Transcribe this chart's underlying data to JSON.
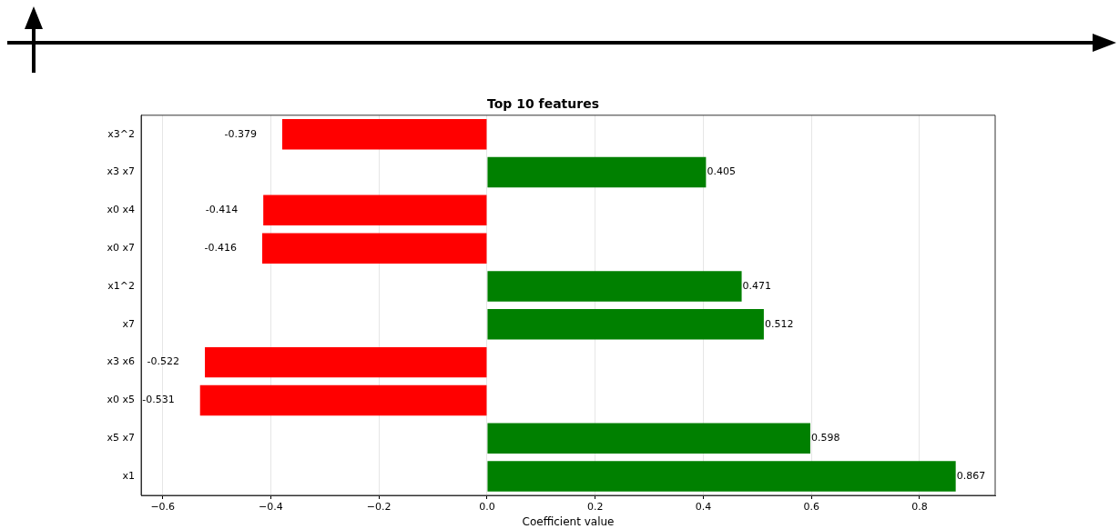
{
  "chart_data": {
    "type": "bar",
    "orientation": "horizontal",
    "title": "Top 10 features",
    "xlabel": "Coefficient value",
    "categories": [
      "x3^2",
      "x3 x7",
      "x0 x4",
      "x0 x7",
      "x1^2",
      "x7",
      "x3 x6",
      "x0 x5",
      "x5 x7",
      "x1"
    ],
    "values": [
      -0.379,
      0.405,
      -0.414,
      -0.416,
      0.471,
      0.512,
      -0.522,
      -0.531,
      0.598,
      0.867
    ],
    "colors": [
      "#ff0000",
      "#008000",
      "#ff0000",
      "#ff0000",
      "#008000",
      "#008000",
      "#ff0000",
      "#ff0000",
      "#008000",
      "#008000"
    ],
    "xlim": [
      -0.64,
      0.94
    ],
    "xticks": [
      {
        "value": -0.6,
        "label": "−0.6"
      },
      {
        "value": -0.4,
        "label": "−0.4"
      },
      {
        "value": -0.2,
        "label": "−0.2"
      },
      {
        "value": 0,
        "label": "0.0"
      },
      {
        "value": 0.2,
        "label": "0.2"
      },
      {
        "value": 0.4,
        "label": "0.4"
      },
      {
        "value": 0.6,
        "label": "0.6"
      },
      {
        "value": 0.8,
        "label": "0.8"
      }
    ],
    "grid": "x",
    "data_labels": true,
    "legend": false
  }
}
